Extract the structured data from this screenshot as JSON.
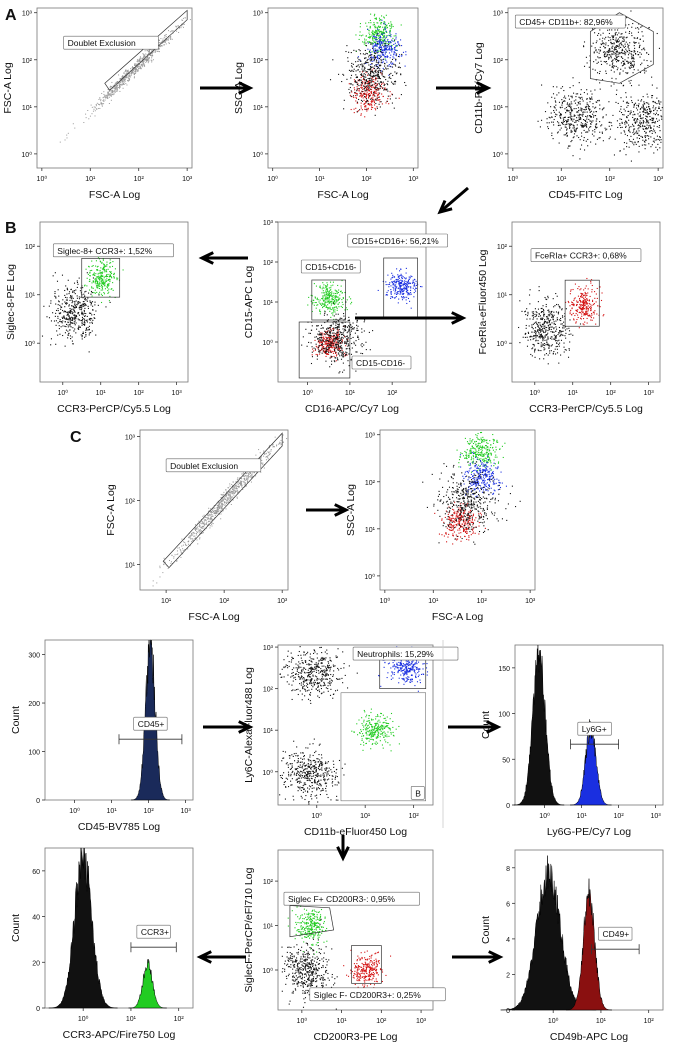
{
  "figure": {
    "panel_labels": [
      "A",
      "B",
      "C"
    ],
    "colors": {
      "green": "#22cc22",
      "blue": "#1a2fe0",
      "red": "#d41414",
      "black": "#111111",
      "navy": "#1a2a5a",
      "darkred": "#8a1010",
      "gray": "#9a9a9a"
    }
  },
  "chart_data": [
    {
      "id": "a1",
      "type": "scatter",
      "xlabel": "FSC-A Log",
      "ylabel": "FSC-A Log",
      "xticks": [
        "10⁰",
        "10¹",
        "10²",
        "10³"
      ],
      "yticks": [
        "10⁰",
        "10¹",
        "10²",
        "10³"
      ],
      "gate": {
        "label": "Doublet Exclusion",
        "shape": "diagonal band"
      },
      "populations": [
        {
          "color": "gray",
          "x_center": 1.9,
          "y_center": 1.8,
          "density": "diagonal"
        }
      ]
    },
    {
      "id": "a2",
      "type": "scatter",
      "xlabel": "FSC-A Log",
      "ylabel": "SSC-A Log",
      "xticks": [
        "10⁰",
        "10¹",
        "10²",
        "10³"
      ],
      "yticks": [
        "10⁰",
        "10¹",
        "10²",
        "10³"
      ],
      "populations": [
        {
          "color": "green",
          "x_center": 2.25,
          "y_center": 2.55
        },
        {
          "color": "blue",
          "x_center": 2.35,
          "y_center": 2.25
        },
        {
          "color": "red",
          "x_center": 2.05,
          "y_center": 1.3
        },
        {
          "color": "black",
          "x_center": 2.1,
          "y_center": 1.7
        }
      ]
    },
    {
      "id": "a3",
      "type": "scatter",
      "xlabel": "CD45-FITC Log",
      "ylabel": "CD11b-PE/Cy7 Log",
      "xticks": [
        "10⁰",
        "10¹",
        "10²",
        "10³"
      ],
      "yticks": [
        "10⁰",
        "10¹",
        "10²",
        "10³"
      ],
      "gate": {
        "label": "CD45+ CD11b+: 82,96%"
      },
      "populations": [
        {
          "color": "black",
          "x_center": 2.2,
          "y_center": 2.2
        },
        {
          "color": "black",
          "x_center": 2.7,
          "y_center": 0.7
        },
        {
          "color": "black",
          "x_center": 1.3,
          "y_center": 0.8
        }
      ]
    },
    {
      "id": "b1",
      "type": "scatter",
      "xlabel": "CCR3-PerCP/Cy5.5 Log",
      "ylabel": "Siglec-8-PE Log",
      "xticks": [
        "10⁰",
        "10¹",
        "10²",
        "10³"
      ],
      "yticks": [
        "10⁰",
        "10¹",
        "10²"
      ],
      "gate": {
        "label": "Siglec-8+ CCR3+: 1,52%"
      },
      "populations": [
        {
          "color": "green",
          "x_center": 1.0,
          "y_center": 1.35
        },
        {
          "color": "black",
          "x_center": 0.3,
          "y_center": 0.6
        }
      ]
    },
    {
      "id": "b2",
      "type": "scatter",
      "xlabel": "CD16-APC/Cy7 Log",
      "ylabel": "CD15-APC Log",
      "xticks": [
        "10⁰",
        "10¹",
        "10²"
      ],
      "yticks": [
        "10⁰",
        "10¹",
        "10²",
        "10³"
      ],
      "gates": [
        "CD15+CD16+: 56,21%",
        "CD15+CD16-",
        "CD15-CD16-"
      ],
      "populations": [
        {
          "color": "blue",
          "x_center": 2.2,
          "y_center": 1.4
        },
        {
          "color": "green",
          "x_center": 0.5,
          "y_center": 1.1
        },
        {
          "color": "red",
          "x_center": 0.5,
          "y_center": 0.0
        },
        {
          "color": "black",
          "x_center": 0.7,
          "y_center": 0.1
        }
      ]
    },
    {
      "id": "b3",
      "type": "scatter",
      "xlabel": "CCR3-PerCP/Cy5.5 Log",
      "ylabel": "FceRIa-eFluor450 Log",
      "xticks": [
        "10⁰",
        "10¹",
        "10²",
        "10³"
      ],
      "yticks": [
        "10⁰",
        "10¹",
        "10²"
      ],
      "gate": {
        "label": "FceRIa+ CCR3+: 0,68%"
      },
      "populations": [
        {
          "color": "red",
          "x_center": 1.3,
          "y_center": 0.8
        },
        {
          "color": "black",
          "x_center": 0.3,
          "y_center": 0.3
        }
      ]
    },
    {
      "id": "c1",
      "type": "scatter",
      "xlabel": "FSC-A Log",
      "ylabel": "FSC-A Log",
      "xticks": [
        "10¹",
        "10²",
        "10³"
      ],
      "yticks": [
        "10¹",
        "10²",
        "10³"
      ],
      "gate": {
        "label": "Doublet Exclusion"
      },
      "populations": [
        {
          "color": "gray",
          "x_center": 2.0,
          "y_center": 2.0,
          "density": "diagonal"
        }
      ]
    },
    {
      "id": "c2",
      "type": "scatter",
      "xlabel": "FSC-A Log",
      "ylabel": "SSC-A Log",
      "xticks": [
        "10⁰",
        "10¹",
        "10²",
        "10³"
      ],
      "yticks": [
        "10⁰",
        "10¹",
        "10²",
        "10³"
      ],
      "populations": [
        {
          "color": "green",
          "x_center": 1.95,
          "y_center": 2.65
        },
        {
          "color": "blue",
          "x_center": 2.0,
          "y_center": 2.1
        },
        {
          "color": "red",
          "x_center": 1.55,
          "y_center": 1.15
        },
        {
          "color": "black",
          "x_center": 1.7,
          "y_center": 1.6
        }
      ]
    },
    {
      "id": "d1",
      "type": "histogram",
      "xlabel": "CD45-BV785 Log",
      "ylabel": "Count",
      "xticks": [
        "10⁰",
        "10¹",
        "10²",
        "10³"
      ],
      "yticks": [
        "0",
        "100",
        "200",
        "300"
      ],
      "ylim": [
        0,
        330
      ],
      "gate": {
        "label": "CD45+",
        "range": [
          1.2,
          2.9
        ]
      },
      "peaks": [
        {
          "color": "navy",
          "center": 2.05,
          "width": 0.13,
          "height": 320
        }
      ]
    },
    {
      "id": "d2",
      "type": "scatter",
      "xlabel": "CD11b-eFluor450 Log",
      "ylabel": "Ly6C-AlexaFluor488 Log",
      "xticks": [
        "10⁰",
        "10¹",
        "10²"
      ],
      "yticks": [
        "10⁰",
        "10¹",
        "10²",
        "10³"
      ],
      "gate": {
        "label": "Neutrophils: 15,29%"
      },
      "box_label": "B",
      "populations": [
        {
          "color": "blue",
          "x_center": 1.85,
          "y_center": 2.5
        },
        {
          "color": "black",
          "x_center": -0.2,
          "y_center": 0.0
        },
        {
          "color": "black",
          "x_center": -0.1,
          "y_center": 2.4
        },
        {
          "color": "green",
          "x_center": 1.2,
          "y_center": 1.0
        }
      ]
    },
    {
      "id": "d3",
      "type": "histogram",
      "xlabel": "Ly6G-PE/Cy7 Log",
      "ylabel": "Count",
      "xticks": [
        "10⁰",
        "10¹",
        "10²",
        "10³"
      ],
      "yticks": [
        "0",
        "50",
        "100",
        "150"
      ],
      "ylim": [
        0,
        175
      ],
      "gate": {
        "label": "Ly6G+",
        "range": [
          0.7,
          2.0
        ]
      },
      "peaks": [
        {
          "color": "black",
          "center": -0.15,
          "width": 0.17,
          "height": 160
        },
        {
          "color": "blue",
          "center": 1.25,
          "width": 0.14,
          "height": 85
        }
      ]
    },
    {
      "id": "e1",
      "type": "histogram",
      "xlabel": "CCR3-APC/Fire750 Log",
      "ylabel": "Count",
      "xticks": [
        "10⁰",
        "10¹",
        "10²"
      ],
      "yticks": [
        "0",
        "20",
        "40",
        "60"
      ],
      "ylim": [
        0,
        70
      ],
      "gate": {
        "label": "CCR3+",
        "range": [
          1.0,
          1.95
        ]
      },
      "peaks": [
        {
          "color": "black",
          "center": 0.0,
          "width": 0.18,
          "height": 66
        },
        {
          "color": "green",
          "center": 1.35,
          "width": 0.1,
          "height": 19
        }
      ]
    },
    {
      "id": "e2",
      "type": "scatter",
      "xlabel": "CD200R3-PE Log",
      "ylabel": "SiglecF-PerCP/eFl710 Log",
      "xticks": [
        "10⁰",
        "10¹",
        "10²",
        "10³"
      ],
      "yticks": [
        "10⁰",
        "10¹",
        "10²"
      ],
      "gates": [
        "Siglec F+ CD200R3-: 0,95%",
        "Siglec F- CD200R3+: 0,25%"
      ],
      "populations": [
        {
          "color": "green",
          "x_center": 0.2,
          "y_center": 1.0
        },
        {
          "color": "black",
          "x_center": 0.1,
          "y_center": 0.0
        },
        {
          "color": "red",
          "x_center": 1.6,
          "y_center": 0.0
        }
      ]
    },
    {
      "id": "e3",
      "type": "histogram",
      "xlabel": "CD49b-APC Log",
      "ylabel": "Count",
      "xticks": [
        "10⁰",
        "10¹",
        "10²"
      ],
      "yticks": [
        "0",
        "2",
        "4",
        "6",
        "8"
      ],
      "ylim": [
        0,
        9
      ],
      "gate": {
        "label": "CD49+",
        "range": [
          0.8,
          1.8
        ]
      },
      "peaks": [
        {
          "color": "black",
          "center": -0.1,
          "width": 0.25,
          "height": 7.6
        },
        {
          "color": "darkred",
          "center": 0.75,
          "width": 0.12,
          "height": 6.5
        }
      ]
    }
  ]
}
